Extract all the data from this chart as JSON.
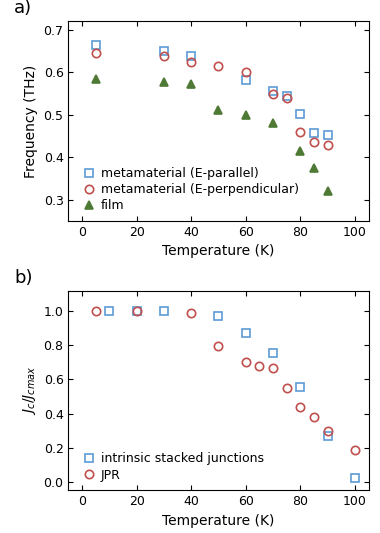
{
  "panel_a": {
    "title": "a)",
    "xlabel": "Temperature (K)",
    "ylabel": "Frequency (THz)",
    "xlim": [
      -5,
      105
    ],
    "ylim": [
      0.25,
      0.72
    ],
    "yticks": [
      0.3,
      0.4,
      0.5,
      0.6,
      0.7
    ],
    "xticks": [
      0,
      20,
      40,
      60,
      80,
      100
    ],
    "meta_parallel": {
      "T": [
        5,
        30,
        40,
        60,
        70,
        75,
        80,
        85,
        90
      ],
      "F": [
        0.665,
        0.65,
        0.638,
        0.582,
        0.555,
        0.545,
        0.502,
        0.458,
        0.452
      ],
      "color": "#5b9bd5",
      "marker": "s",
      "label": "metamaterial (E-parallel)"
    },
    "meta_perp": {
      "T": [
        5,
        30,
        40,
        50,
        60,
        70,
        75,
        80,
        85,
        90
      ],
      "F": [
        0.645,
        0.638,
        0.625,
        0.615,
        0.6,
        0.548,
        0.54,
        0.46,
        0.435,
        0.428
      ],
      "color": "#c0504d",
      "marker": "o",
      "label": "metamaterial (E-perpendicular)"
    },
    "film": {
      "T": [
        5,
        30,
        40,
        50,
        60,
        70,
        80,
        85,
        90
      ],
      "F": [
        0.583,
        0.578,
        0.573,
        0.51,
        0.5,
        0.48,
        0.415,
        0.375,
        0.32
      ],
      "color": "#4e7a35",
      "marker": "^",
      "label": "film"
    }
  },
  "panel_b": {
    "title": "b)",
    "xlabel": "Temperature (K)",
    "ylabel": "$J_c/J_{cmax}$",
    "xlim": [
      -5,
      105
    ],
    "ylim": [
      -0.05,
      1.12
    ],
    "yticks": [
      0.0,
      0.2,
      0.4,
      0.6,
      0.8,
      1.0
    ],
    "xticks": [
      0,
      20,
      40,
      60,
      80,
      100
    ],
    "stacked": {
      "T": [
        10,
        20,
        30,
        50,
        60,
        70,
        80,
        90,
        100
      ],
      "J": [
        1.0,
        1.0,
        1.0,
        0.975,
        0.875,
        0.755,
        0.555,
        0.27,
        0.025
      ],
      "color": "#5b9bd5",
      "marker": "s",
      "label": "intrinsic stacked junctions"
    },
    "jpr": {
      "T": [
        5,
        20,
        40,
        50,
        60,
        65,
        70,
        75,
        80,
        85,
        90,
        100
      ],
      "J": [
        1.0,
        1.0,
        0.99,
        0.795,
        0.7,
        0.68,
        0.665,
        0.55,
        0.44,
        0.38,
        0.3,
        0.185
      ],
      "color": "#c0504d",
      "marker": "o",
      "label": "JPR"
    }
  },
  "background_color": "#ffffff",
  "panel_label_fontsize": 13,
  "axis_label_fontsize": 10,
  "tick_fontsize": 9,
  "legend_fontsize": 9,
  "marker_size": 6,
  "marker_linewidth": 1.2
}
